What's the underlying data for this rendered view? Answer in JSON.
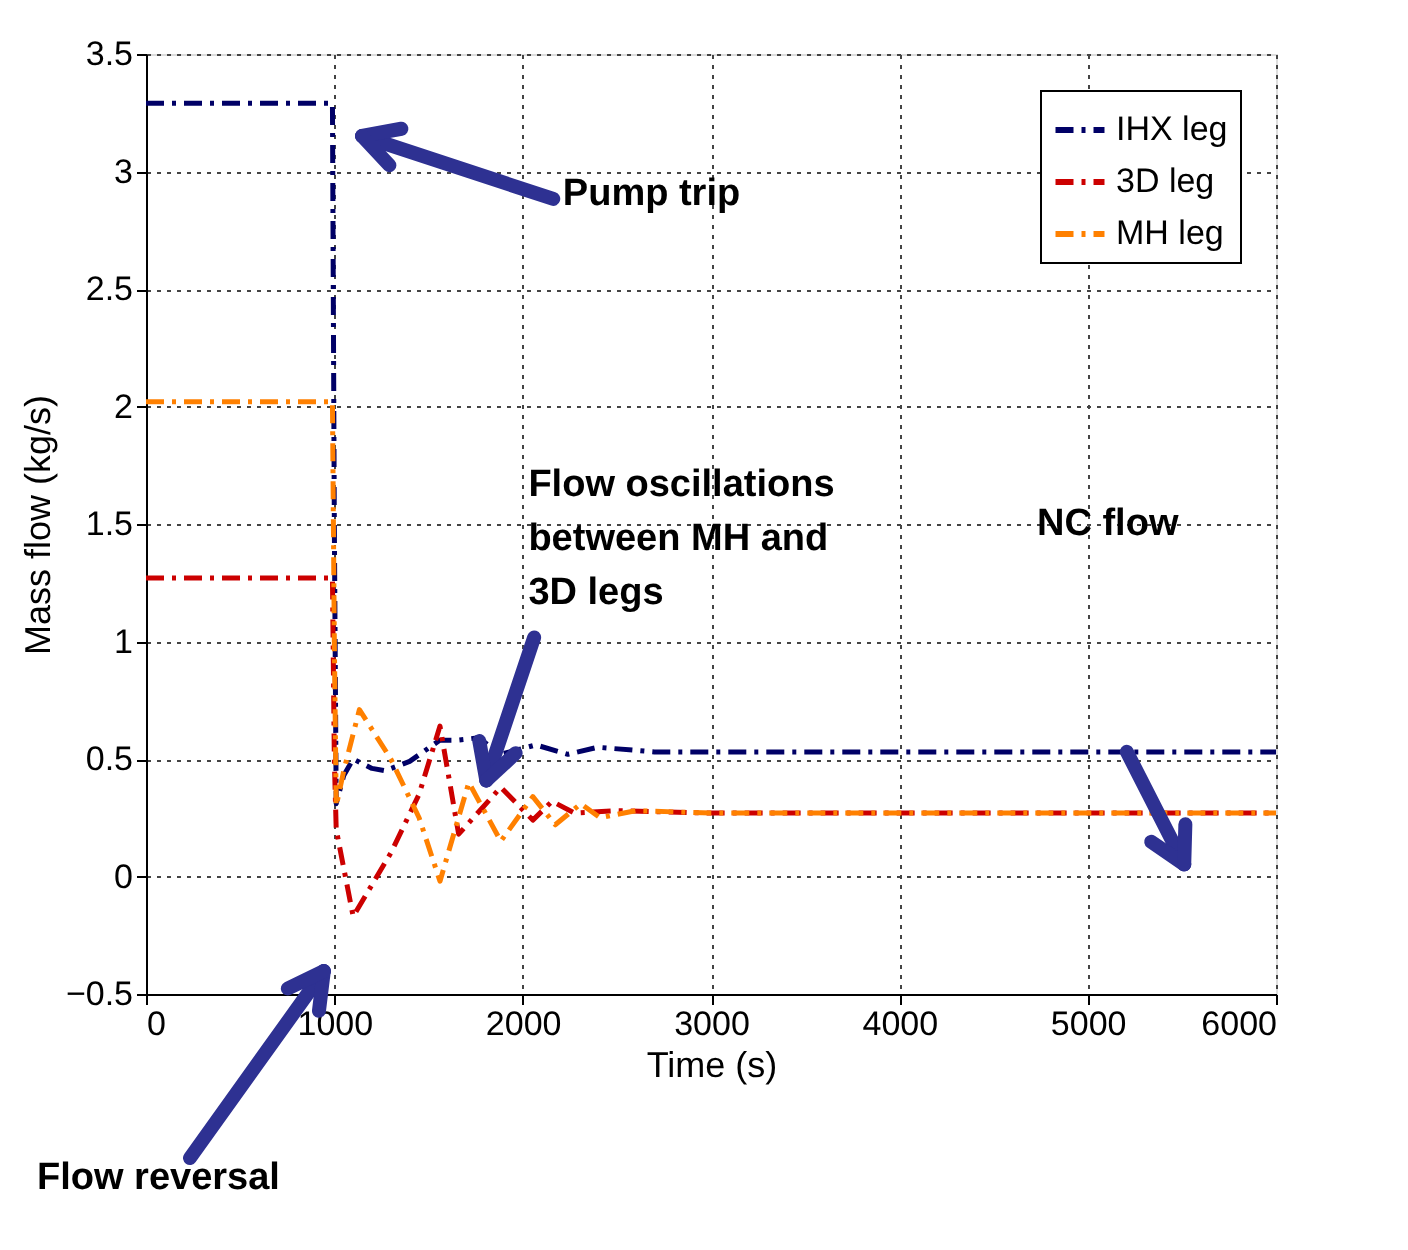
{
  "chart_data": {
    "type": "line",
    "xlabel": "Time (s)",
    "ylabel": "Mass flow (kg/s)",
    "xlim": [
      0,
      6000
    ],
    "ylim": [
      -0.5,
      3.5
    ],
    "xticks": [
      0,
      1000,
      2000,
      3000,
      4000,
      5000,
      6000
    ],
    "yticks": [
      -0.5,
      0,
      0.5,
      1,
      1.5,
      2,
      2.5,
      3,
      3.5
    ],
    "grid": true,
    "legend": "top right",
    "line_style": "dashed",
    "marker": "none",
    "series": [
      {
        "name": "IHX leg",
        "color": "#000066",
        "x": [
          0,
          500,
          990,
          1000,
          1010,
          1050,
          1100,
          1200,
          1270,
          1400,
          1560,
          1650,
          1765,
          1884,
          2070,
          2240,
          2400,
          2700,
          3000,
          4000,
          5000,
          6000
        ],
        "values": [
          3.29,
          3.29,
          3.29,
          1.5,
          0.31,
          0.43,
          0.5,
          0.46,
          0.45,
          0.49,
          0.58,
          0.58,
          0.59,
          0.52,
          0.56,
          0.52,
          0.55,
          0.53,
          0.53,
          0.53,
          0.53,
          0.53
        ]
      },
      {
        "name": "3D leg",
        "color": "#cc0000",
        "x": [
          0,
          500,
          990,
          1000,
          1010,
          1100,
          1300,
          1450,
          1561,
          1660,
          1884,
          2054,
          2156,
          2275,
          2500,
          3000,
          4000,
          5000,
          6000
        ],
        "values": [
          1.27,
          1.27,
          1.27,
          0.5,
          0.2,
          -0.17,
          0.1,
          0.35,
          0.64,
          0.18,
          0.38,
          0.24,
          0.32,
          0.27,
          0.28,
          0.27,
          0.27,
          0.27,
          0.27
        ]
      },
      {
        "name": "MH leg",
        "color": "#ff8000",
        "x": [
          0,
          500,
          990,
          1000,
          1010,
          1050,
          1133,
          1300,
          1450,
          1561,
          1714,
          1884,
          2054,
          2173,
          2309,
          2411,
          2600,
          3000,
          4000,
          5000,
          6000
        ],
        "values": [
          2.02,
          2.02,
          2.02,
          1.0,
          0.3,
          0.45,
          0.71,
          0.5,
          0.25,
          -0.02,
          0.4,
          0.15,
          0.34,
          0.22,
          0.31,
          0.25,
          0.28,
          0.27,
          0.27,
          0.27,
          0.27
        ]
      }
    ],
    "annotations": [
      "Pump trip",
      "Flow oscillations\nbetween MH and\n3D legs",
      "NC flow",
      "Flow reversal"
    ]
  }
}
